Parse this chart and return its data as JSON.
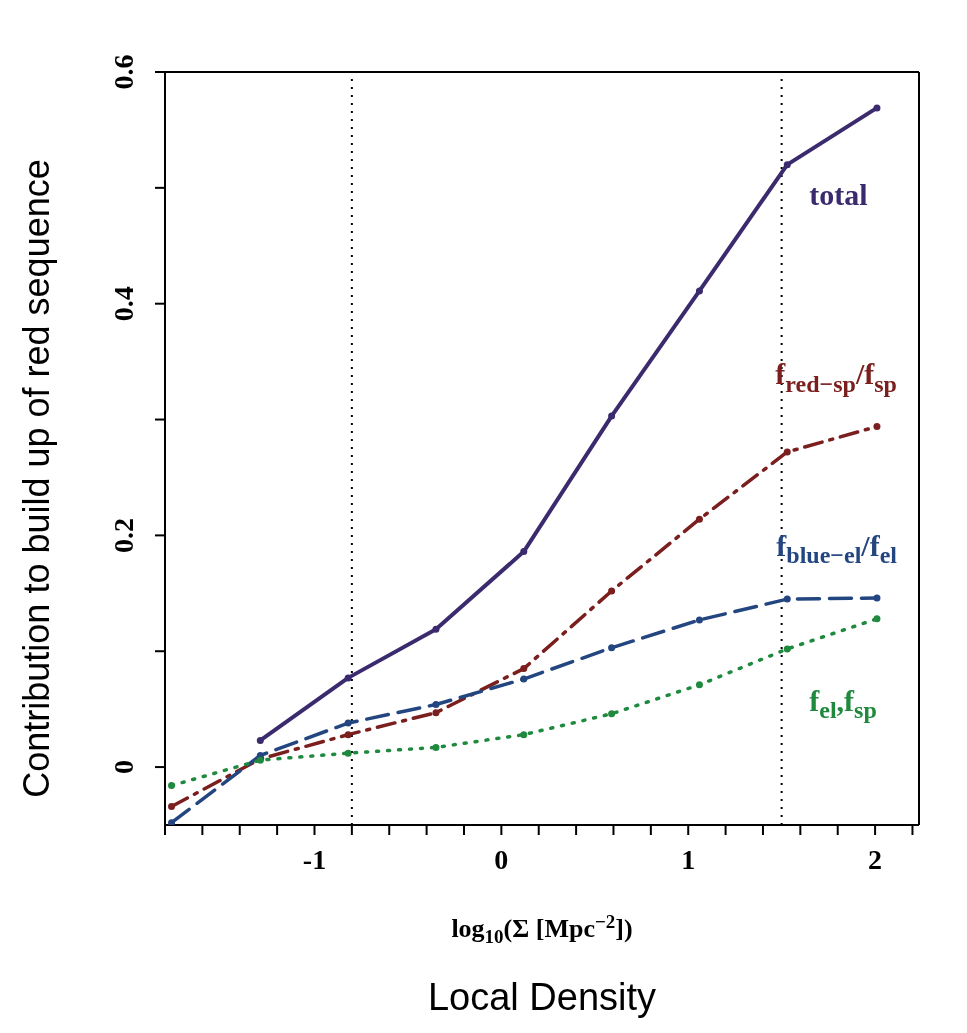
{
  "chart_data": {
    "type": "line",
    "xlabel": "log$_{10}$(Σ [Mpc$^{−2}$])",
    "ylabel": "Contribution to build up of  red sequence",
    "annotations": [
      "Local Density"
    ],
    "x": [
      -1.765,
      -1.29,
      -0.82,
      -0.35,
      0.12,
      0.59,
      1.06,
      1.53,
      2.01
    ],
    "series": [
      {
        "name": "total",
        "color": "#3b2b6e",
        "line_style": "solid",
        "values": [
          null,
          0.023,
          0.077,
          0.119,
          0.186,
          0.303,
          0.411,
          0.52,
          0.569
        ]
      },
      {
        "name": "f$_{red−sp}$/f$_{sp}$",
        "color": "#7a1e1e",
        "line_style": "dashdot",
        "values": [
          -0.034,
          0.007,
          0.028,
          0.047,
          0.085,
          0.152,
          0.214,
          0.272,
          0.294
        ]
      },
      {
        "name": "f$_{blue−el}$/f$_{el}$",
        "color": "#234680",
        "line_style": "dashed",
        "values": [
          -0.048,
          0.01,
          0.038,
          0.054,
          0.076,
          0.103,
          0.127,
          0.145,
          0.146
        ]
      },
      {
        "name": "f$_{el}$,f$_{sp}$",
        "color": "#1f8a3e",
        "line_style": "dotted",
        "values": [
          -0.016,
          0.006,
          0.012,
          0.017,
          0.028,
          0.046,
          0.071,
          0.102,
          0.128
        ]
      }
    ],
    "marker": "circle",
    "xlim": [
      -1.8,
      2.235
    ],
    "ylim": [
      -0.05,
      0.6
    ],
    "xticks": [
      {
        "value": -1.8,
        "label": null
      },
      {
        "value": -1.6,
        "label": null
      },
      {
        "value": -1.4,
        "label": null
      },
      {
        "value": -1.2,
        "label": null
      },
      -1,
      {
        "value": -0.8,
        "label": null
      },
      {
        "value": -0.6,
        "label": null
      },
      {
        "value": -0.4,
        "label": null
      },
      {
        "value": -0.2,
        "label": null
      },
      0,
      {
        "value": 0.2,
        "label": null
      },
      {
        "value": 0.4,
        "label": null
      },
      {
        "value": 0.6,
        "label": null
      },
      {
        "value": 0.8,
        "label": null
      },
      1,
      {
        "value": 1.2,
        "label": null
      },
      {
        "value": 1.4,
        "label": null
      },
      {
        "value": 1.6,
        "label": null
      },
      {
        "value": 1.8,
        "label": null
      },
      2,
      {
        "value": 2.2,
        "label": null
      }
    ],
    "yticks": [
      0,
      {
        "value": 0.1,
        "label": null
      },
      0.2,
      {
        "value": 0.3,
        "label": null
      },
      0.4,
      {
        "value": 0.5,
        "label": null
      },
      0.6
    ],
    "ref_lines": [
      {
        "axis": "x",
        "value": -0.8,
        "color": "#000000",
        "line_style": "dotted"
      },
      {
        "axis": "x",
        "value": 1.5,
        "color": "#000000",
        "line_style": "dotted"
      }
    ],
    "grid": false,
    "legend": false
  }
}
